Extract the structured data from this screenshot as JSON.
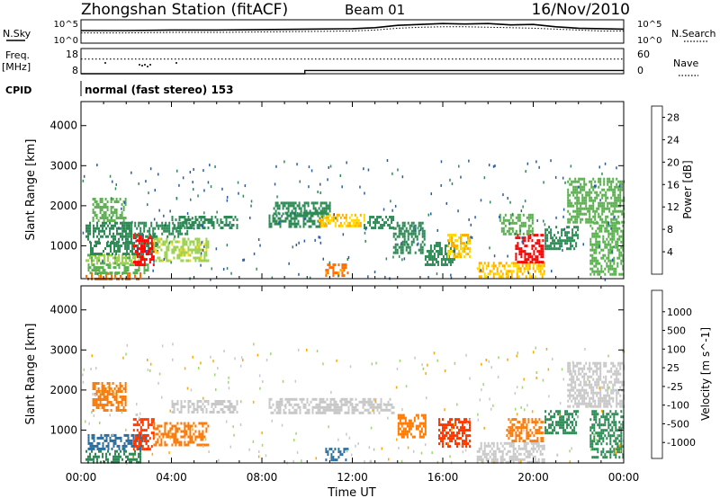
{
  "header": {
    "station": "Zhongshan Station (fitACF)",
    "beam": "Beam 01",
    "date": "16/Nov/2010"
  },
  "top_panel": {
    "left_label": "N.Sky",
    "right_label": "N.Search",
    "left_ticks": [
      "10^5",
      "10^0"
    ],
    "right_ticks": [
      "10^5",
      "10^0"
    ],
    "nsky_series": [
      [
        0,
        2.7
      ],
      [
        2,
        2.7
      ],
      [
        4,
        2.8
      ],
      [
        6,
        2.8
      ],
      [
        8,
        2.9
      ],
      [
        10,
        3.0
      ],
      [
        12,
        3.1
      ],
      [
        13,
        3.3
      ],
      [
        14,
        3.8
      ],
      [
        15,
        4.0
      ],
      [
        16,
        4.2
      ],
      [
        17,
        4.1
      ],
      [
        18,
        4.2
      ],
      [
        19,
        3.9
      ],
      [
        20,
        4.0
      ],
      [
        21,
        3.5
      ],
      [
        22,
        3.2
      ],
      [
        23,
        3.1
      ],
      [
        24,
        3.0
      ]
    ],
    "nsearch_series": [
      [
        0,
        2.2
      ],
      [
        2,
        2.2
      ],
      [
        4,
        2.3
      ],
      [
        6,
        2.3
      ],
      [
        8,
        2.4
      ],
      [
        10,
        2.5
      ],
      [
        12,
        2.6
      ],
      [
        13,
        2.8
      ],
      [
        14,
        3.2
      ],
      [
        15,
        3.4
      ],
      [
        16,
        3.5
      ],
      [
        17,
        3.5
      ],
      [
        18,
        3.4
      ],
      [
        19,
        3.3
      ],
      [
        20,
        3.2
      ],
      [
        21,
        3.0
      ],
      [
        22,
        2.8
      ],
      [
        23,
        2.6
      ],
      [
        24,
        2.6
      ]
    ]
  },
  "freq_panel": {
    "left_label_top": "Freq.",
    "left_label_unit": "[MHz]",
    "right_label": "Nave",
    "left_ticks": [
      "18",
      "8"
    ],
    "right_ticks": [
      "60",
      "0"
    ],
    "freq_series": [
      [
        0,
        8
      ],
      [
        9.9,
        8
      ],
      [
        9.9,
        10
      ],
      [
        24,
        10
      ]
    ],
    "nave_series": [
      [
        0,
        35
      ],
      [
        24,
        35
      ]
    ]
  },
  "cpid": {
    "label": "CPID",
    "text": "normal (fast stereo) 153"
  },
  "chart_data": [
    {
      "type": "heatmap",
      "title": "",
      "ylabel": "Slant Range [km]",
      "xlabel": "",
      "xlim": [
        0,
        24
      ],
      "ylim": [
        180,
        4600
      ],
      "yticks": [
        1000,
        2000,
        3000,
        4000
      ],
      "colorbar": {
        "label": "Power [dB]",
        "ticks": [
          4,
          8,
          12,
          16,
          20,
          24,
          28
        ],
        "range": [
          0,
          30
        ],
        "colors": [
          "#1010ff",
          "#2a5aa6",
          "#2e8a55",
          "#5ab04e",
          "#9ad24a",
          "#ffd800",
          "#ffae00",
          "#ff6a00",
          "#ff0000"
        ]
      },
      "patches": [
        {
          "t": [
            0.2,
            2.6
          ],
          "r": [
            200,
            340
          ],
          "v": 24
        },
        {
          "t": [
            0.3,
            3.0
          ],
          "r": [
            340,
            560
          ],
          "v": 12
        },
        {
          "t": [
            0.2,
            2.8
          ],
          "r": [
            560,
            800
          ],
          "v": 14
        },
        {
          "t": [
            0.4,
            3.4
          ],
          "r": [
            800,
            1100
          ],
          "v": 8
        },
        {
          "t": [
            0.2,
            2.2
          ],
          "r": [
            1100,
            1600
          ],
          "v": 8
        },
        {
          "t": [
            0.5,
            2.0
          ],
          "r": [
            1600,
            2200
          ],
          "v": 12
        },
        {
          "t": [
            2.3,
            3.2
          ],
          "r": [
            500,
            1300
          ],
          "v": 28
        },
        {
          "t": [
            3.2,
            5.6
          ],
          "r": [
            650,
            1200
          ],
          "v": 16
        },
        {
          "t": [
            4.0,
            6.9
          ],
          "r": [
            1450,
            1750
          ],
          "v": 8
        },
        {
          "t": [
            1.8,
            4.8
          ],
          "r": [
            1200,
            1600
          ],
          "v": 8
        },
        {
          "t": [
            8.3,
            10.8
          ],
          "r": [
            1500,
            1850
          ],
          "v": 8
        },
        {
          "t": [
            10.5,
            12.5
          ],
          "r": [
            1500,
            1800
          ],
          "v": 20
        },
        {
          "t": [
            12.5,
            13.8
          ],
          "r": [
            1450,
            1750
          ],
          "v": 8
        },
        {
          "t": [
            10.8,
            11.8
          ],
          "r": [
            250,
            560
          ],
          "v": 24
        },
        {
          "t": [
            8.5,
            11.0
          ],
          "r": [
            1800,
            2100
          ],
          "v": 8
        },
        {
          "t": [
            13.8,
            15.2
          ],
          "r": [
            800,
            1600
          ],
          "v": 8
        },
        {
          "t": [
            15.2,
            16.5
          ],
          "r": [
            500,
            1100
          ],
          "v": 8
        },
        {
          "t": [
            16.2,
            17.2
          ],
          "r": [
            700,
            1300
          ],
          "v": 20
        },
        {
          "t": [
            17.5,
            20.5
          ],
          "r": [
            200,
            600
          ],
          "v": 20
        },
        {
          "t": [
            19.2,
            20.4
          ],
          "r": [
            600,
            1300
          ],
          "v": 28
        },
        {
          "t": [
            18.5,
            20.0
          ],
          "r": [
            1300,
            1800
          ],
          "v": 12
        },
        {
          "t": [
            21.5,
            24.0
          ],
          "r": [
            1600,
            2700
          ],
          "v": 12
        },
        {
          "t": [
            22.5,
            24.0
          ],
          "r": [
            300,
            1600
          ],
          "v": 12
        },
        {
          "t": [
            20.5,
            22.0
          ],
          "r": [
            900,
            1500
          ],
          "v": 8
        }
      ]
    },
    {
      "type": "heatmap",
      "title": "",
      "ylabel": "Slant Range [km]",
      "xlabel": "Time UT",
      "xlim": [
        0,
        24
      ],
      "ylim": [
        180,
        4600
      ],
      "xticks": [
        "00:00",
        "04:00",
        "08:00",
        "12:00",
        "16:00",
        "20:00",
        "00:00"
      ],
      "yticks": [
        1000,
        2000,
        3000,
        4000
      ],
      "colorbar": {
        "label": "Velocity [m s^-1]",
        "ticks": [
          "1000",
          "500",
          "100",
          "25",
          "-25",
          "-100",
          "-500",
          "-1000"
        ],
        "colors": [
          "#2a4fd6",
          "#2c6e9c",
          "#2e8a55",
          "#3fa84a",
          "#a0d870",
          "#c8c8c8",
          "#ffa800",
          "#ff7800",
          "#ff3800",
          "#ff0000"
        ]
      },
      "patches": [
        {
          "t": [
            0.2,
            2.6
          ],
          "r": [
            200,
            500
          ],
          "v": 100
        },
        {
          "t": [
            0.3,
            3.0
          ],
          "r": [
            500,
            900
          ],
          "v": 500
        },
        {
          "t": [
            0.5,
            2.0
          ],
          "r": [
            1500,
            2200
          ],
          "v": -100
        },
        {
          "t": [
            2.3,
            3.2
          ],
          "r": [
            500,
            1300
          ],
          "v": -500
        },
        {
          "t": [
            3.2,
            5.6
          ],
          "r": [
            650,
            1200
          ],
          "v": -100
        },
        {
          "t": [
            4.0,
            6.9
          ],
          "r": [
            1450,
            1750
          ],
          "v": 0
        },
        {
          "t": [
            8.3,
            13.8
          ],
          "r": [
            1450,
            1800
          ],
          "v": 0
        },
        {
          "t": [
            10.8,
            11.8
          ],
          "r": [
            250,
            560
          ],
          "v": 500
        },
        {
          "t": [
            14.0,
            15.2
          ],
          "r": [
            800,
            1400
          ],
          "v": -100
        },
        {
          "t": [
            15.8,
            17.2
          ],
          "r": [
            600,
            1300
          ],
          "v": -500
        },
        {
          "t": [
            17.5,
            20.5
          ],
          "r": [
            200,
            700
          ],
          "v": 0
        },
        {
          "t": [
            18.8,
            20.4
          ],
          "r": [
            700,
            1300
          ],
          "v": -100
        },
        {
          "t": [
            21.5,
            24.0
          ],
          "r": [
            1600,
            2700
          ],
          "v": 0
        },
        {
          "t": [
            22.5,
            24.0
          ],
          "r": [
            300,
            1500
          ],
          "v": 100
        },
        {
          "t": [
            20.5,
            22.0
          ],
          "r": [
            900,
            1500
          ],
          "v": 100
        }
      ]
    }
  ]
}
